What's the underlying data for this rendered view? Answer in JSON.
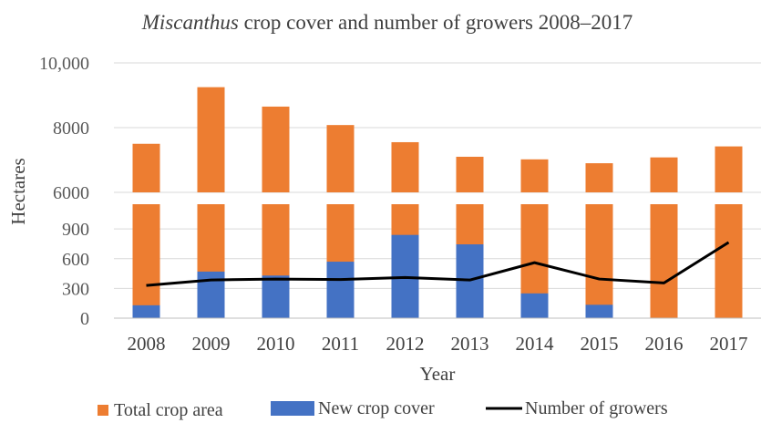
{
  "chart_data": {
    "type": "bar",
    "title_italic": "Miscanthus",
    "title_rest": " crop cover and number of growers 2008–2017",
    "xlabel": "Year",
    "ylabel": "Hectares",
    "categories": [
      "2008",
      "2009",
      "2010",
      "2011",
      "2012",
      "2013",
      "2014",
      "2015",
      "2016",
      "2017"
    ],
    "broken_axis": true,
    "upper_segment": {
      "ylim": [
        6000,
        10000
      ],
      "ticks": [
        "6000",
        "8000",
        "10,000"
      ]
    },
    "lower_segment": {
      "ylim": [
        0,
        1150
      ],
      "ticks": [
        "0",
        "300",
        "600",
        "900"
      ]
    },
    "series": [
      {
        "name": "Total crop area",
        "kind": "bar",
        "color": "#ED7D31",
        "values": [
          7500,
          9250,
          8650,
          8080,
          7550,
          7100,
          7020,
          6900,
          7080,
          7420
        ]
      },
      {
        "name": "New crop cover",
        "kind": "bar",
        "color": "#4472C4",
        "values": [
          130,
          470,
          430,
          570,
          840,
          745,
          250,
          135,
          0,
          0
        ]
      },
      {
        "name": "Number of growers",
        "kind": "line",
        "color": "#000000",
        "values": [
          330,
          385,
          395,
          390,
          410,
          385,
          560,
          395,
          355,
          765
        ]
      }
    ],
    "legend": {
      "position": "bottom",
      "entries": [
        "Total crop area",
        "New crop cover",
        "Number of growers"
      ]
    },
    "grid": true
  }
}
